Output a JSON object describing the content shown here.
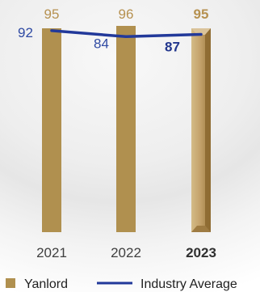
{
  "chart_data": {
    "type": "bar",
    "categories": [
      "2021",
      "2022",
      "2023"
    ],
    "highlight_category": "2023",
    "series": [
      {
        "name": "Yanlord",
        "type": "bar",
        "values": [
          95,
          96,
          95
        ],
        "color": "#b0904f"
      },
      {
        "name": "Industry Average",
        "type": "line",
        "values": [
          92,
          84,
          87
        ],
        "color": "#22399a"
      }
    ],
    "title": "",
    "xlabel": "",
    "ylabel": "",
    "grid": false,
    "legend_position": "bottom-left"
  }
}
